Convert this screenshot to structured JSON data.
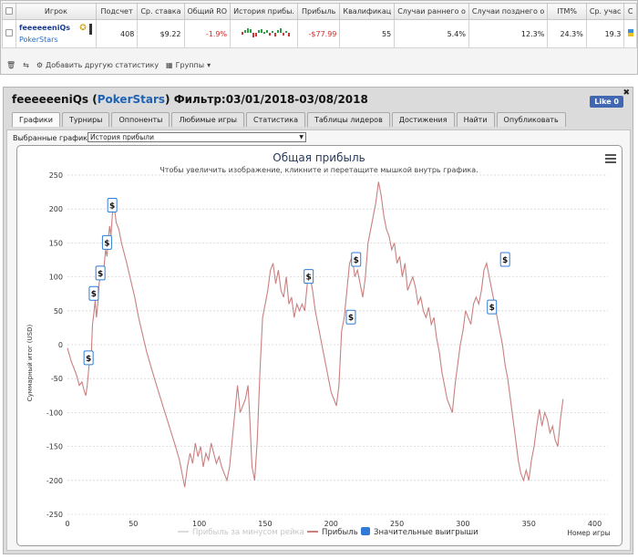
{
  "stats_table": {
    "headers": [
      "Игрок",
      "Подсчет",
      "Ср. ставка",
      "Общий RO",
      "История прибы.",
      "Прибыль",
      "Квалификац",
      "Случаи раннего о",
      "Случаи позднего о",
      "ITM%",
      "Ср. учас",
      "С"
    ],
    "row": {
      "player": "feeeeeeniQs",
      "network": "PokerStars",
      "count": "408",
      "avg_stake": "$9.22",
      "roi": "-1.9%",
      "profit": "-$77.99",
      "qualified": "55",
      "early": "5.4%",
      "late": "12.3%",
      "itm": "24.3%",
      "avg_part": "19.3"
    }
  },
  "toolbar": {
    "add_stat": "Добавить другую статистику",
    "groups": "Группы"
  },
  "panel": {
    "player": "feeeeeeniQs",
    "network": "PokerStars",
    "filter": "Фильтр:03/01/2018-03/08/2018",
    "like": "Like 0",
    "tabs": [
      "Графики",
      "Турниры",
      "Оппоненты",
      "Любимые игры",
      "Статистика",
      "Таблицы лидеров",
      "Достижения",
      "Найти",
      "Опубликовать"
    ],
    "select_label": "Выбранные графики:",
    "select_value": "История прибыли"
  },
  "chart_data": {
    "type": "line",
    "title": "Общая прибыль",
    "subtitle": "Чтобы увеличить изображение, кликните и перетащите мышкой внутрь графика.",
    "xlabel": "Номер игры",
    "ylabel": "Суммарный итог (USD)",
    "xlim": [
      0,
      410
    ],
    "ylim": [
      -250,
      250
    ],
    "xticks": [
      0,
      50,
      100,
      150,
      200,
      250,
      300,
      350,
      400
    ],
    "yticks": [
      -250,
      -200,
      -150,
      -100,
      -50,
      0,
      50,
      100,
      150,
      200,
      250
    ],
    "legend": [
      "Прибыль за минусом рейка",
      "Прибыль",
      "Значительные выигрыши"
    ],
    "legend_position": "bottom",
    "line_color": "#c98080",
    "marker_label": "$",
    "series": [
      {
        "name": "Прибыль",
        "points": [
          [
            0,
            -5
          ],
          [
            3,
            -25
          ],
          [
            5,
            -35
          ],
          [
            7,
            -45
          ],
          [
            9,
            -60
          ],
          [
            11,
            -55
          ],
          [
            13,
            -70
          ],
          [
            14,
            -75
          ],
          [
            15,
            -60
          ],
          [
            16,
            -40
          ],
          [
            17,
            -15
          ],
          [
            18,
            -20
          ],
          [
            19,
            30
          ],
          [
            20,
            45
          ],
          [
            21,
            65
          ],
          [
            22,
            40
          ],
          [
            23,
            60
          ],
          [
            24,
            90
          ],
          [
            25,
            100
          ],
          [
            26,
            115
          ],
          [
            27,
            95
          ],
          [
            28,
            120
          ],
          [
            29,
            140
          ],
          [
            30,
            130
          ],
          [
            31,
            155
          ],
          [
            32,
            175
          ],
          [
            33,
            160
          ],
          [
            34,
            190
          ],
          [
            35,
            210
          ],
          [
            36,
            195
          ],
          [
            37,
            180
          ],
          [
            39,
            170
          ],
          [
            41,
            150
          ],
          [
            43,
            135
          ],
          [
            45,
            120
          ],
          [
            48,
            95
          ],
          [
            51,
            70
          ],
          [
            54,
            40
          ],
          [
            57,
            15
          ],
          [
            60,
            -10
          ],
          [
            63,
            -30
          ],
          [
            66,
            -50
          ],
          [
            70,
            -75
          ],
          [
            74,
            -100
          ],
          [
            78,
            -125
          ],
          [
            82,
            -150
          ],
          [
            85,
            -170
          ],
          [
            87,
            -190
          ],
          [
            89,
            -210
          ],
          [
            91,
            -180
          ],
          [
            93,
            -160
          ],
          [
            95,
            -175
          ],
          [
            97,
            -145
          ],
          [
            99,
            -165
          ],
          [
            101,
            -150
          ],
          [
            103,
            -180
          ],
          [
            105,
            -160
          ],
          [
            107,
            -170
          ],
          [
            109,
            -145
          ],
          [
            111,
            -160
          ],
          [
            113,
            -175
          ],
          [
            115,
            -165
          ],
          [
            117,
            -180
          ],
          [
            119,
            -190
          ],
          [
            121,
            -200
          ],
          [
            123,
            -180
          ],
          [
            125,
            -140
          ],
          [
            127,
            -100
          ],
          [
            129,
            -60
          ],
          [
            131,
            -100
          ],
          [
            133,
            -90
          ],
          [
            135,
            -80
          ],
          [
            137,
            -60
          ],
          [
            138,
            -95
          ],
          [
            140,
            -180
          ],
          [
            142,
            -200
          ],
          [
            144,
            -140
          ],
          [
            146,
            -40
          ],
          [
            148,
            40
          ],
          [
            150,
            60
          ],
          [
            152,
            80
          ],
          [
            154,
            110
          ],
          [
            156,
            120
          ],
          [
            158,
            90
          ],
          [
            160,
            110
          ],
          [
            162,
            80
          ],
          [
            164,
            70
          ],
          [
            166,
            100
          ],
          [
            168,
            60
          ],
          [
            170,
            70
          ],
          [
            172,
            40
          ],
          [
            174,
            60
          ],
          [
            176,
            50
          ],
          [
            178,
            60
          ],
          [
            180,
            50
          ],
          [
            182,
            90
          ],
          [
            184,
            100
          ],
          [
            186,
            80
          ],
          [
            188,
            50
          ],
          [
            190,
            30
          ],
          [
            192,
            10
          ],
          [
            194,
            -10
          ],
          [
            196,
            -30
          ],
          [
            198,
            -50
          ],
          [
            200,
            -70
          ],
          [
            202,
            -80
          ],
          [
            204,
            -90
          ],
          [
            206,
            -60
          ],
          [
            208,
            20
          ],
          [
            210,
            40
          ],
          [
            212,
            80
          ],
          [
            214,
            120
          ],
          [
            216,
            130
          ],
          [
            218,
            100
          ],
          [
            220,
            110
          ],
          [
            222,
            90
          ],
          [
            224,
            70
          ],
          [
            226,
            100
          ],
          [
            228,
            150
          ],
          [
            230,
            170
          ],
          [
            232,
            190
          ],
          [
            234,
            210
          ],
          [
            236,
            240
          ],
          [
            238,
            220
          ],
          [
            240,
            190
          ],
          [
            242,
            170
          ],
          [
            244,
            160
          ],
          [
            246,
            140
          ],
          [
            248,
            150
          ],
          [
            250,
            120
          ],
          [
            252,
            130
          ],
          [
            254,
            100
          ],
          [
            256,
            120
          ],
          [
            258,
            80
          ],
          [
            260,
            90
          ],
          [
            262,
            100
          ],
          [
            264,
            85
          ],
          [
            266,
            60
          ],
          [
            268,
            70
          ],
          [
            270,
            50
          ],
          [
            272,
            40
          ],
          [
            274,
            55
          ],
          [
            276,
            30
          ],
          [
            278,
            40
          ],
          [
            280,
            10
          ],
          [
            282,
            -10
          ],
          [
            284,
            -40
          ],
          [
            286,
            -60
          ],
          [
            288,
            -80
          ],
          [
            290,
            -90
          ],
          [
            292,
            -100
          ],
          [
            294,
            -60
          ],
          [
            296,
            -30
          ],
          [
            298,
            0
          ],
          [
            300,
            20
          ],
          [
            302,
            50
          ],
          [
            304,
            40
          ],
          [
            306,
            30
          ],
          [
            308,
            60
          ],
          [
            310,
            70
          ],
          [
            312,
            60
          ],
          [
            314,
            80
          ],
          [
            316,
            110
          ],
          [
            318,
            120
          ],
          [
            320,
            100
          ],
          [
            322,
            80
          ],
          [
            324,
            60
          ],
          [
            326,
            40
          ],
          [
            328,
            20
          ],
          [
            330,
            0
          ],
          [
            332,
            -30
          ],
          [
            334,
            -50
          ],
          [
            336,
            -80
          ],
          [
            338,
            -110
          ],
          [
            340,
            -140
          ],
          [
            342,
            -170
          ],
          [
            344,
            -190
          ],
          [
            346,
            -200
          ],
          [
            348,
            -185
          ],
          [
            350,
            -200
          ],
          [
            352,
            -170
          ],
          [
            354,
            -150
          ],
          [
            356,
            -120
          ],
          [
            358,
            -95
          ],
          [
            360,
            -120
          ],
          [
            362,
            -100
          ],
          [
            364,
            -110
          ],
          [
            366,
            -130
          ],
          [
            368,
            -120
          ],
          [
            370,
            -140
          ],
          [
            372,
            -150
          ],
          [
            374,
            -110
          ],
          [
            376,
            -80
          ]
        ]
      }
    ],
    "big_wins": [
      [
        16,
        -20
      ],
      [
        20,
        75
      ],
      [
        25,
        105
      ],
      [
        30,
        150
      ],
      [
        34,
        205
      ],
      [
        183,
        100
      ],
      [
        215,
        40
      ],
      [
        219,
        125
      ],
      [
        322,
        55
      ],
      [
        332,
        125
      ]
    ]
  }
}
